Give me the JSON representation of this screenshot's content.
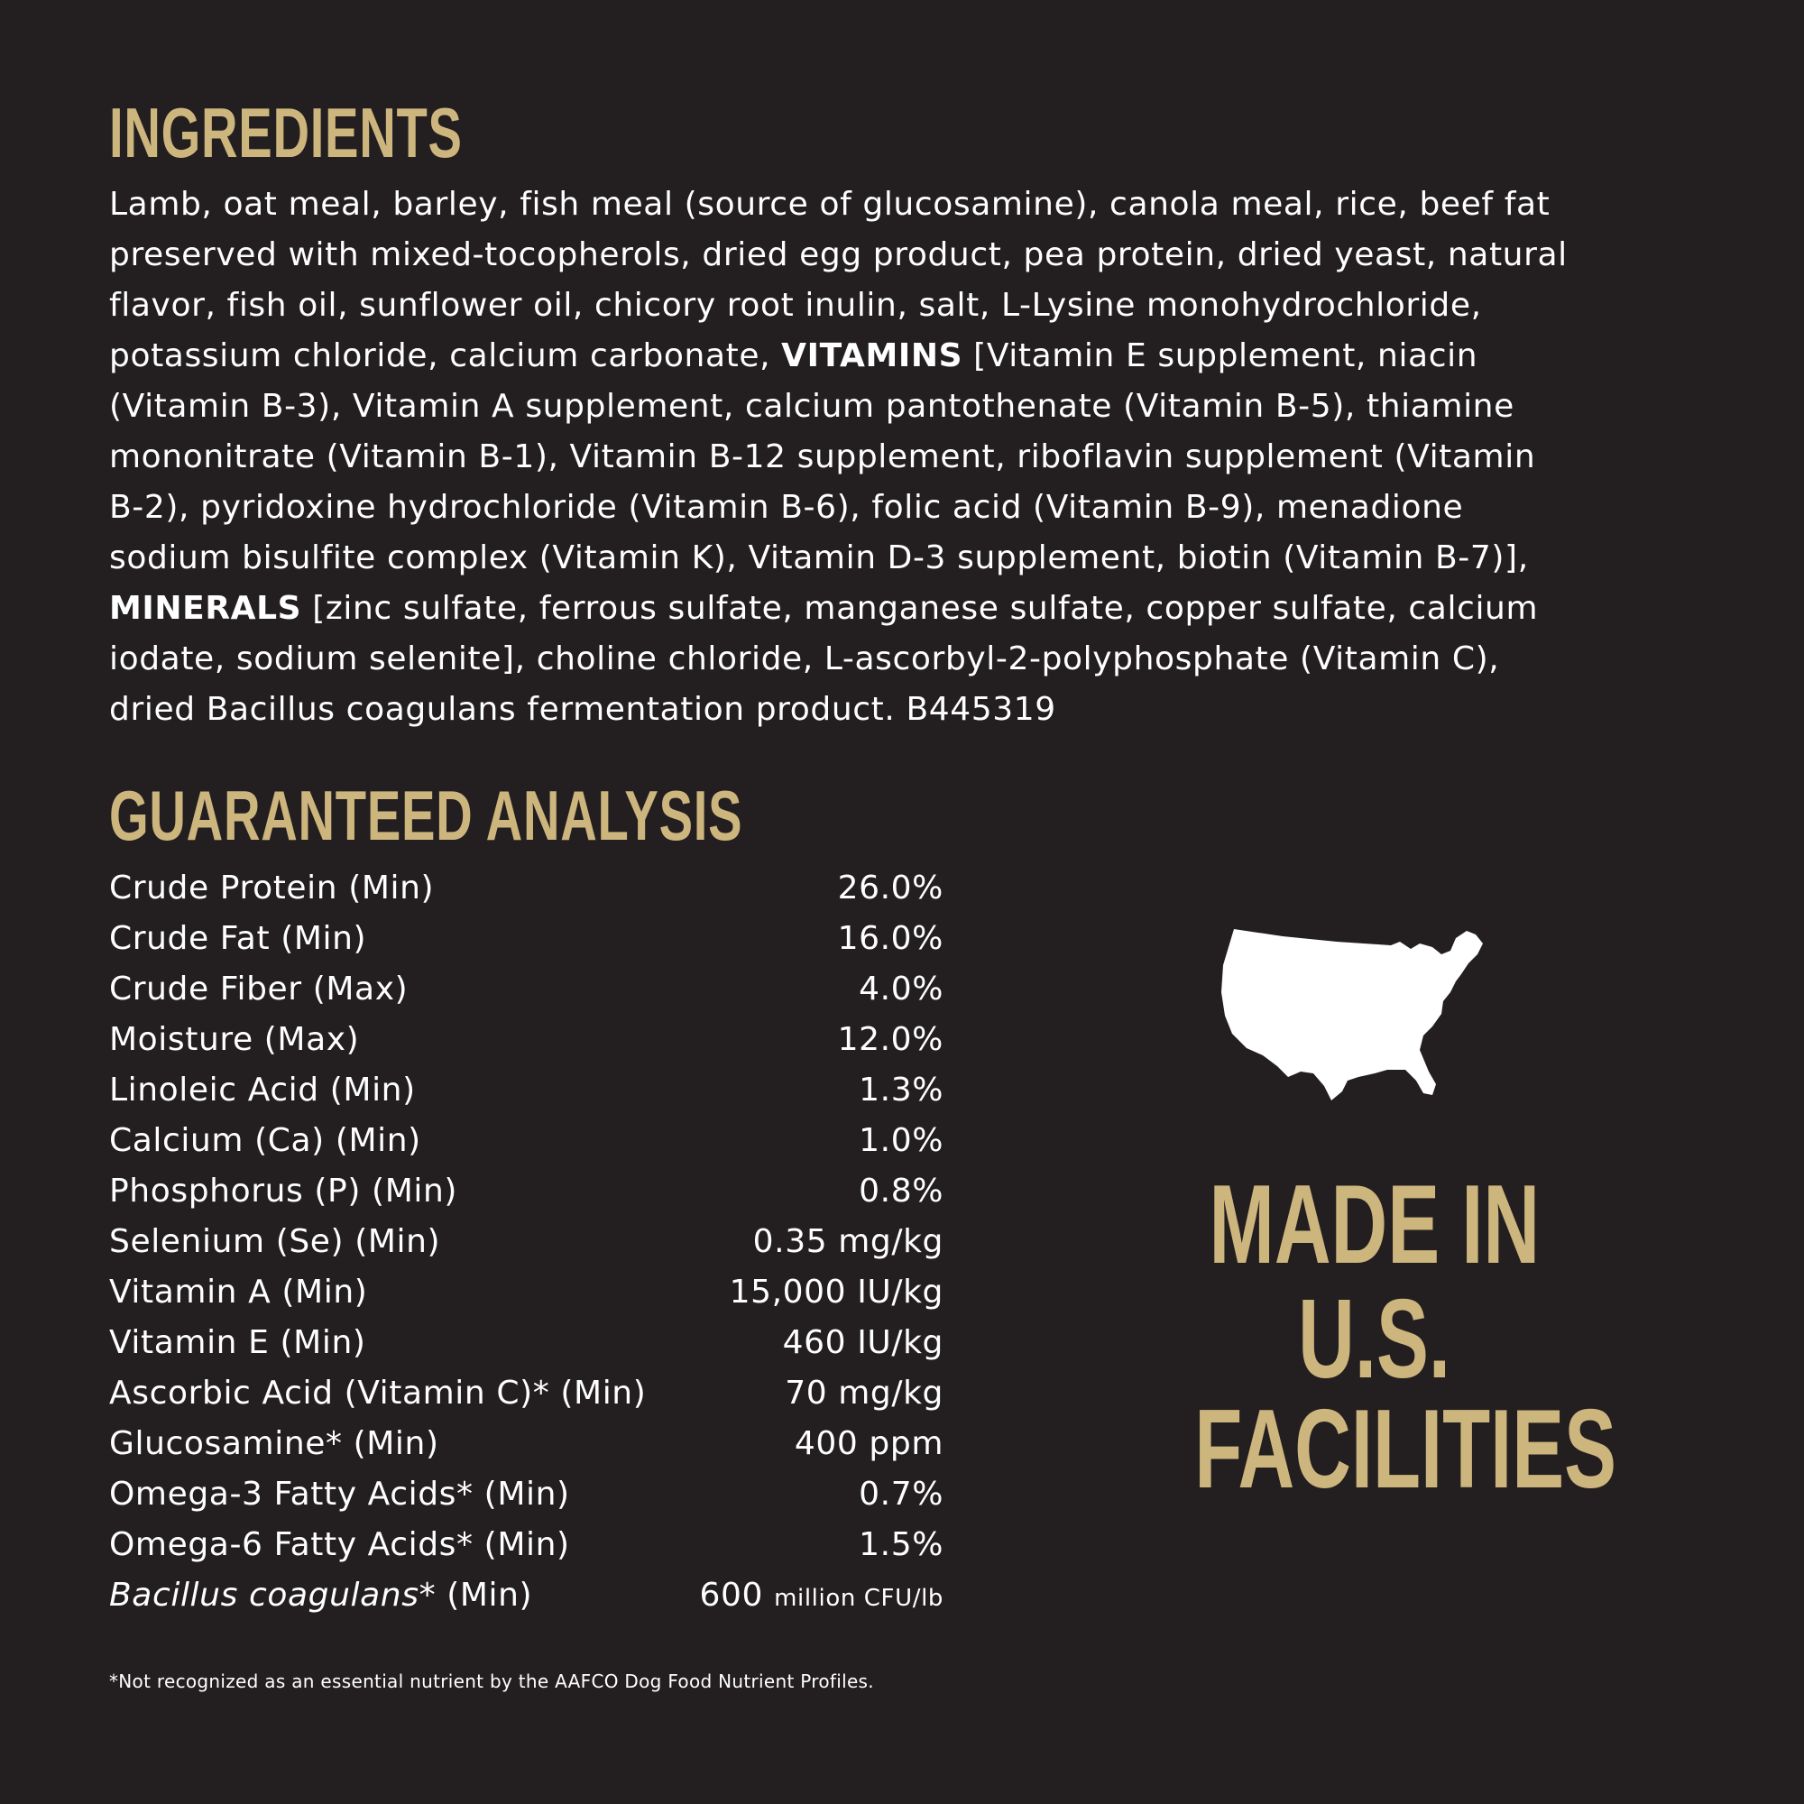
{
  "ingredients": {
    "title": "INGREDIENTS",
    "lines": [
      [
        {
          "t": "Lamb, oat meal, barley, fish meal (source of glucosamine), canola meal, rice, beef fat"
        }
      ],
      [
        {
          "t": "preserved with mixed-tocopherols, dried egg product, pea protein, dried yeast, natural"
        }
      ],
      [
        {
          "t": "flavor, fish oil, sunflower oil, chicory root inulin, salt, L-Lysine monohydrochloride,"
        }
      ],
      [
        {
          "t": "potassium chloride, calcium carbonate, "
        },
        {
          "t": "VITAMINS",
          "b": true
        },
        {
          "t": " [Vitamin E supplement, niacin"
        }
      ],
      [
        {
          "t": "(Vitamin B-3), Vitamin A supplement, calcium pantothenate (Vitamin B-5), thiamine"
        }
      ],
      [
        {
          "t": "mononitrate (Vitamin B-1), Vitamin B-12 supplement, riboflavin supplement (Vitamin"
        }
      ],
      [
        {
          "t": "B-2), pyridoxine hydrochloride (Vitamin B-6), folic acid (Vitamin B-9), menadione"
        }
      ],
      [
        {
          "t": "sodium bisulfite complex (Vitamin K), Vitamin D-3 supplement, biotin (Vitamin B-7)],"
        }
      ],
      [
        {
          "t": "MINERALS",
          "b": true
        },
        {
          "t": " [zinc sulfate, ferrous sulfate, manganese sulfate, copper sulfate, calcium"
        }
      ],
      [
        {
          "t": "iodate, sodium selenite], choline chloride, L-ascorbyl-2-polyphosphate (Vitamin C),"
        }
      ],
      [
        {
          "t": "dried Bacillus coagulans fermentation product. B445319"
        }
      ]
    ]
  },
  "analysis": {
    "title": "GUARANTEED ANALYSIS",
    "rows": [
      {
        "label": "Crude Protein (Min)",
        "value": "26.0%"
      },
      {
        "label": "Crude Fat (Min)",
        "value": "16.0%"
      },
      {
        "label": "Crude Fiber (Max)",
        "value": "4.0%"
      },
      {
        "label": "Moisture (Max)",
        "value": "12.0%"
      },
      {
        "label": "Linoleic Acid (Min)",
        "value": "1.3%"
      },
      {
        "label": "Calcium (Ca) (Min)",
        "value": "1.0%"
      },
      {
        "label": "Phosphorus (P) (Min)",
        "value": "0.8%"
      },
      {
        "label": "Selenium (Se) (Min)",
        "value": "0.35 mg/kg"
      },
      {
        "label": "Vitamin A (Min)",
        "value": "15,000 IU/kg"
      },
      {
        "label": "Vitamin E (Min)",
        "value": "460 IU/kg"
      },
      {
        "label": "Ascorbic Acid (Vitamin C)* (Min)",
        "value": "70 mg/kg"
      },
      {
        "label": "Glucosamine* (Min)",
        "value": "400 ppm"
      },
      {
        "label": "Omega-3 Fatty Acids* (Min)",
        "value": "0.7%"
      },
      {
        "label": "Omega-6 Fatty Acids* (Min)",
        "value": "1.5%"
      }
    ],
    "last_row": {
      "label_italic": "Bacillus coagulans",
      "label_rest": "* (Min)",
      "value": "600",
      "unit": "million CFU/lb"
    },
    "footnote": "*Not recognized as an essential nutrient by the AAFCO Dog Food Nutrient Profiles."
  },
  "badge": {
    "icon": "usa-map-icon",
    "lines": [
      "MADE IN",
      "U.S.",
      "FACILITIES"
    ]
  },
  "colors": {
    "background": "#231f20",
    "gold": "#cdb57e",
    "text": "#ffffff"
  }
}
